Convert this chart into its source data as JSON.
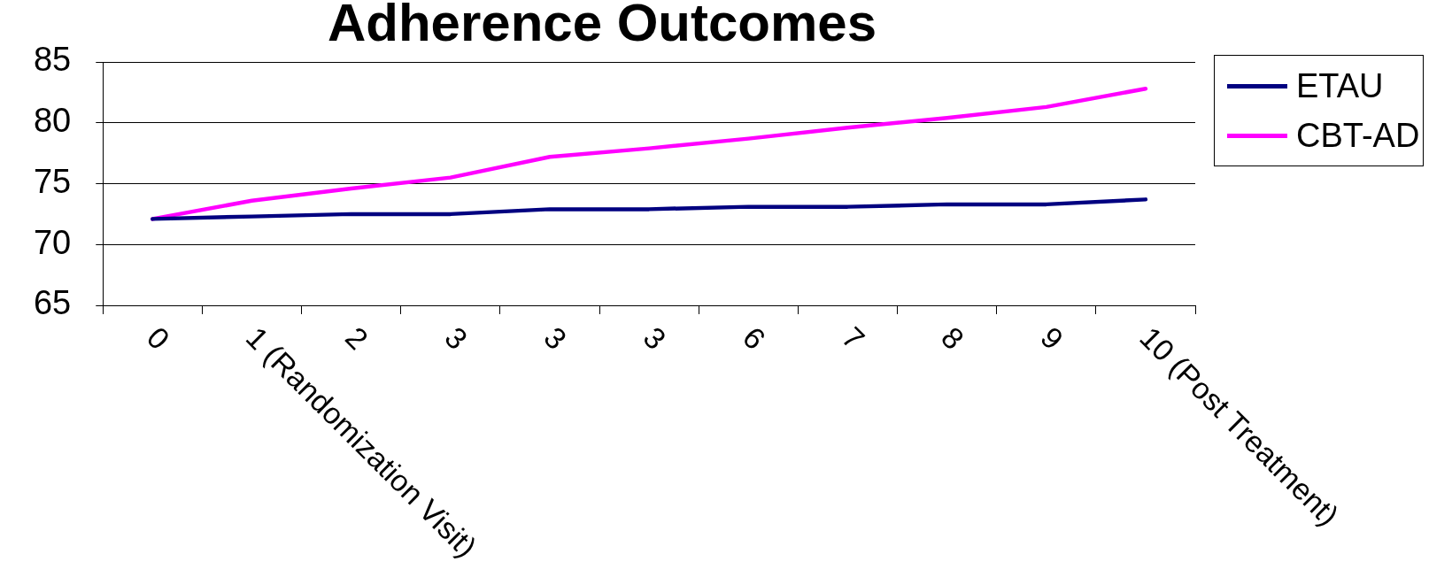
{
  "chart_data": {
    "type": "line",
    "title": "Adherence Outcomes",
    "categories": [
      "0",
      "1 (Randomization Visit)",
      "2",
      "3",
      "3",
      "3",
      "6",
      "7",
      "8",
      "9",
      "10 (Post Treatment)"
    ],
    "series": [
      {
        "name": "ETAU",
        "color": "#000080",
        "values": [
          72.1,
          72.3,
          72.5,
          72.5,
          72.9,
          72.9,
          73.1,
          73.1,
          73.3,
          73.3,
          73.7
        ]
      },
      {
        "name": "CBT-AD",
        "color": "#ff00ff",
        "values": [
          72.1,
          73.6,
          74.6,
          75.5,
          77.2,
          77.9,
          78.7,
          79.6,
          80.4,
          81.3,
          82.8
        ]
      }
    ],
    "ylim": [
      65,
      85
    ],
    "yticks": [
      65,
      70,
      75,
      80,
      85
    ],
    "grid": "y",
    "legend": "right",
    "marker": "none",
    "line_style": "solid"
  }
}
